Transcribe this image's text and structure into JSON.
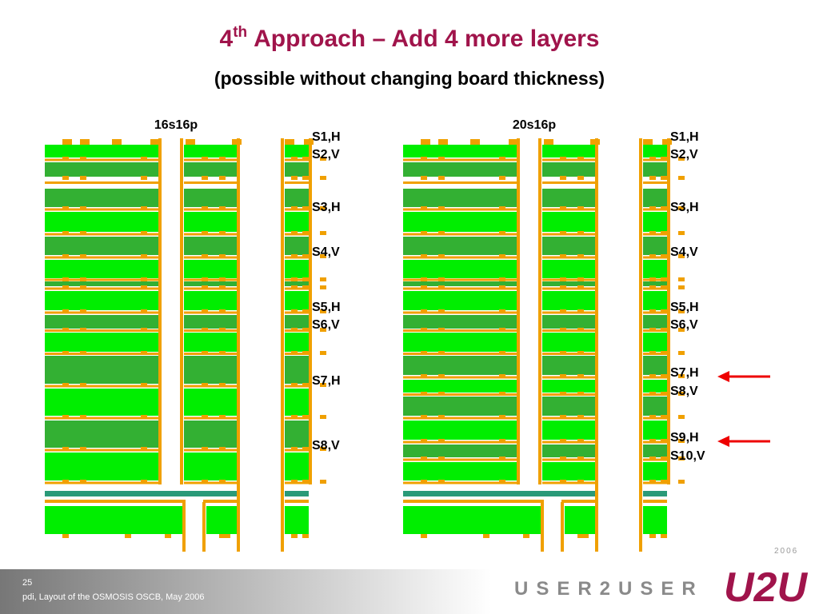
{
  "header": {
    "title_number": "4",
    "title_sup": "th",
    "title_rest": "Approach – Add 4 more layers",
    "subtitle": "(possible without changing board thickness)"
  },
  "stackups": [
    {
      "name": "16s16p",
      "labels": [
        "S1,H",
        "S2,V",
        "S3,H",
        "S4,V",
        "S5,H",
        "S6,V",
        "S7,H",
        "S8,V"
      ]
    },
    {
      "name": "20s16p",
      "labels": [
        "S1,H",
        "S2,V",
        "S3,H",
        "S4,V",
        "S5,H",
        "S6,V",
        "S7,H",
        "S8,V",
        "S9,H",
        "S10,V"
      ]
    }
  ],
  "footer": {
    "page": "25",
    "note": "pdi, Layout of the OSMOSIS OSCB, May 2006"
  },
  "logo": {
    "text": "USER2USER",
    "mark": "U2U",
    "year": "2006"
  }
}
